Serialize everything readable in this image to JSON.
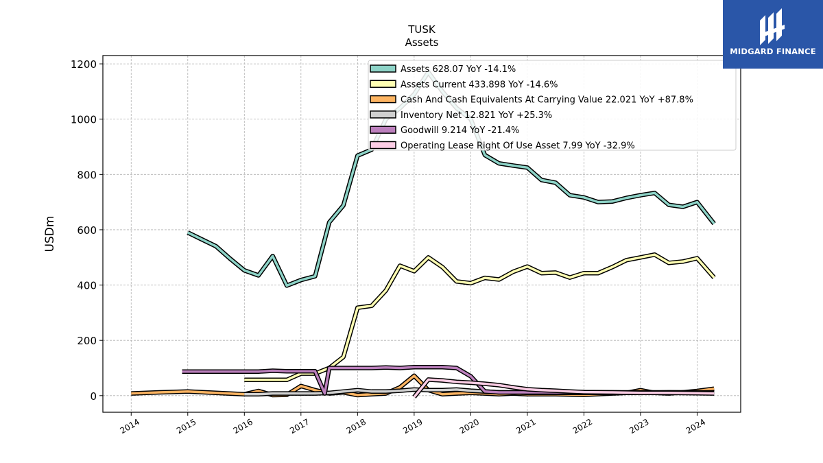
{
  "logo": {
    "text": "MIDGARD FINANCE",
    "background": "#2a56a8"
  },
  "chart_data": {
    "type": "line",
    "title": "TUSK",
    "subtitle": "Assets",
    "xlabel": "",
    "ylabel": "USDm",
    "xlim": [
      2013.5,
      2024.77
    ],
    "ylim": [
      -60,
      1230
    ],
    "x_ticks": [
      "2014",
      "2015",
      "2016",
      "2017",
      "2018",
      "2019",
      "2020",
      "2021",
      "2022",
      "2023",
      "2024"
    ],
    "y_ticks": [
      0,
      200,
      400,
      600,
      800,
      1000,
      1200
    ],
    "grid": true,
    "legend_position": "upper-center",
    "series": [
      {
        "name": "Assets",
        "legend": "Assets  628.07 YoY -14.1%",
        "color": "#8dd3c7",
        "points": [
          [
            2015.0,
            590
          ],
          [
            2015.25,
            565
          ],
          [
            2015.5,
            540
          ],
          [
            2015.75,
            495
          ],
          [
            2016.0,
            453
          ],
          [
            2016.25,
            435
          ],
          [
            2016.5,
            505
          ],
          [
            2016.75,
            398
          ],
          [
            2017.0,
            418
          ],
          [
            2017.25,
            432
          ],
          [
            2017.5,
            627
          ],
          [
            2017.75,
            688
          ],
          [
            2018.0,
            868
          ],
          [
            2018.25,
            890
          ],
          [
            2018.5,
            1000
          ],
          [
            2018.75,
            1040
          ],
          [
            2019.0,
            1090
          ],
          [
            2019.25,
            1170
          ],
          [
            2019.5,
            1100
          ],
          [
            2019.75,
            1040
          ],
          [
            2020.0,
            1000
          ],
          [
            2020.25,
            870
          ],
          [
            2020.5,
            840
          ],
          [
            2020.75,
            832
          ],
          [
            2021.0,
            825
          ],
          [
            2021.25,
            780
          ],
          [
            2021.5,
            770
          ],
          [
            2021.75,
            725
          ],
          [
            2022.0,
            717
          ],
          [
            2022.25,
            700
          ],
          [
            2022.5,
            702
          ],
          [
            2022.75,
            715
          ],
          [
            2023.0,
            725
          ],
          [
            2023.25,
            733
          ],
          [
            2023.5,
            690
          ],
          [
            2023.75,
            683
          ],
          [
            2024.0,
            700
          ],
          [
            2024.3,
            622
          ]
        ]
      },
      {
        "name": "Assets Current",
        "legend": "Assets Current  433.898 YoY -14.6%",
        "color": "#ffffb3",
        "points": [
          [
            2016.0,
            57
          ],
          [
            2016.25,
            57
          ],
          [
            2016.5,
            57
          ],
          [
            2016.75,
            57
          ],
          [
            2017.0,
            80
          ],
          [
            2017.25,
            80
          ],
          [
            2017.5,
            100
          ],
          [
            2017.75,
            140
          ],
          [
            2018.0,
            318
          ],
          [
            2018.25,
            325
          ],
          [
            2018.5,
            380
          ],
          [
            2018.75,
            470
          ],
          [
            2019.0,
            450
          ],
          [
            2019.25,
            500
          ],
          [
            2019.5,
            465
          ],
          [
            2019.75,
            413
          ],
          [
            2020.0,
            407
          ],
          [
            2020.25,
            426
          ],
          [
            2020.5,
            420
          ],
          [
            2020.75,
            448
          ],
          [
            2021.0,
            467
          ],
          [
            2021.25,
            443
          ],
          [
            2021.5,
            445
          ],
          [
            2021.75,
            427
          ],
          [
            2022.0,
            443
          ],
          [
            2022.25,
            443
          ],
          [
            2022.5,
            465
          ],
          [
            2022.75,
            490
          ],
          [
            2023.0,
            500
          ],
          [
            2023.25,
            510
          ],
          [
            2023.5,
            480
          ],
          [
            2023.75,
            485
          ],
          [
            2024.0,
            497
          ],
          [
            2024.3,
            427
          ]
        ]
      },
      {
        "name": "Cash And Cash Equivalents At Carrying Value",
        "legend": "Cash And Cash Equivalents At Carrying Value  22.021 YoY +87.8%",
        "color": "#fdb462",
        "points": [
          [
            2014.0,
            8
          ],
          [
            2014.5,
            12
          ],
          [
            2015.0,
            15
          ],
          [
            2015.5,
            10
          ],
          [
            2016.0,
            5
          ],
          [
            2016.25,
            17
          ],
          [
            2016.5,
            2
          ],
          [
            2016.75,
            3
          ],
          [
            2017.0,
            35
          ],
          [
            2017.25,
            20
          ],
          [
            2017.5,
            8
          ],
          [
            2017.75,
            12
          ],
          [
            2018.0,
            2
          ],
          [
            2018.25,
            5
          ],
          [
            2018.5,
            8
          ],
          [
            2018.75,
            30
          ],
          [
            2019.0,
            72
          ],
          [
            2019.25,
            20
          ],
          [
            2019.5,
            5
          ],
          [
            2019.75,
            8
          ],
          [
            2020.0,
            10
          ],
          [
            2020.25,
            8
          ],
          [
            2020.5,
            5
          ],
          [
            2020.75,
            8
          ],
          [
            2021.0,
            5
          ],
          [
            2021.5,
            5
          ],
          [
            2022.0,
            3
          ],
          [
            2022.5,
            8
          ],
          [
            2022.75,
            10
          ],
          [
            2023.0,
            20
          ],
          [
            2023.25,
            10
          ],
          [
            2023.5,
            8
          ],
          [
            2023.75,
            12
          ],
          [
            2024.0,
            17
          ],
          [
            2024.3,
            25
          ]
        ]
      },
      {
        "name": "Inventory Net",
        "legend": "Inventory Net  12.821 YoY +25.3%",
        "color": "#d0d0d0",
        "points": [
          [
            2016.0,
            5
          ],
          [
            2016.25,
            5
          ],
          [
            2016.5,
            8
          ],
          [
            2016.75,
            8
          ],
          [
            2017.0,
            8
          ],
          [
            2017.25,
            8
          ],
          [
            2017.5,
            10
          ],
          [
            2017.75,
            15
          ],
          [
            2018.0,
            20
          ],
          [
            2018.25,
            15
          ],
          [
            2018.5,
            15
          ],
          [
            2018.75,
            18
          ],
          [
            2019.0,
            22
          ],
          [
            2019.25,
            20
          ],
          [
            2019.5,
            20
          ],
          [
            2019.75,
            22
          ],
          [
            2020.0,
            18
          ],
          [
            2020.25,
            15
          ],
          [
            2020.5,
            12
          ],
          [
            2020.75,
            12
          ],
          [
            2021.0,
            10
          ],
          [
            2021.5,
            10
          ],
          [
            2022.0,
            10
          ],
          [
            2022.5,
            10
          ],
          [
            2023.0,
            10
          ],
          [
            2023.5,
            12
          ],
          [
            2024.0,
            12
          ],
          [
            2024.3,
            12
          ]
        ]
      },
      {
        "name": "Goodwill",
        "legend": "Goodwill  9.214 YoY -21.4%",
        "color": "#bc80bd",
        "points": [
          [
            2014.9,
            87
          ],
          [
            2015.5,
            87
          ],
          [
            2016.0,
            87
          ],
          [
            2016.25,
            87
          ],
          [
            2016.5,
            90
          ],
          [
            2016.75,
            88
          ],
          [
            2017.0,
            88
          ],
          [
            2017.25,
            88
          ],
          [
            2017.42,
            8
          ],
          [
            2017.5,
            100
          ],
          [
            2017.75,
            100
          ],
          [
            2018.0,
            100
          ],
          [
            2018.25,
            100
          ],
          [
            2018.5,
            102
          ],
          [
            2018.75,
            100
          ],
          [
            2019.0,
            103
          ],
          [
            2019.25,
            103
          ],
          [
            2019.5,
            103
          ],
          [
            2019.75,
            100
          ],
          [
            2020.0,
            70
          ],
          [
            2020.25,
            15
          ],
          [
            2020.5,
            12
          ],
          [
            2020.75,
            12
          ],
          [
            2021.0,
            12
          ],
          [
            2021.5,
            12
          ],
          [
            2022.0,
            12
          ],
          [
            2022.5,
            12
          ],
          [
            2023.0,
            12
          ],
          [
            2023.5,
            12
          ],
          [
            2024.0,
            11
          ],
          [
            2024.3,
            9
          ]
        ]
      },
      {
        "name": "Operating Lease Right Of Use Asset",
        "legend": "Operating Lease Right Of Use Asset  7.99 YoY -32.9%",
        "color": "#fccde5",
        "points": [
          [
            2019.0,
            -5
          ],
          [
            2019.25,
            58
          ],
          [
            2019.5,
            55
          ],
          [
            2019.75,
            50
          ],
          [
            2020.0,
            47
          ],
          [
            2020.25,
            43
          ],
          [
            2020.5,
            38
          ],
          [
            2020.75,
            30
          ],
          [
            2021.0,
            23
          ],
          [
            2021.25,
            20
          ],
          [
            2021.5,
            18
          ],
          [
            2021.75,
            15
          ],
          [
            2022.0,
            13
          ],
          [
            2022.5,
            12
          ],
          [
            2023.0,
            10
          ],
          [
            2023.5,
            10
          ],
          [
            2024.0,
            9
          ],
          [
            2024.3,
            8
          ]
        ]
      }
    ]
  }
}
